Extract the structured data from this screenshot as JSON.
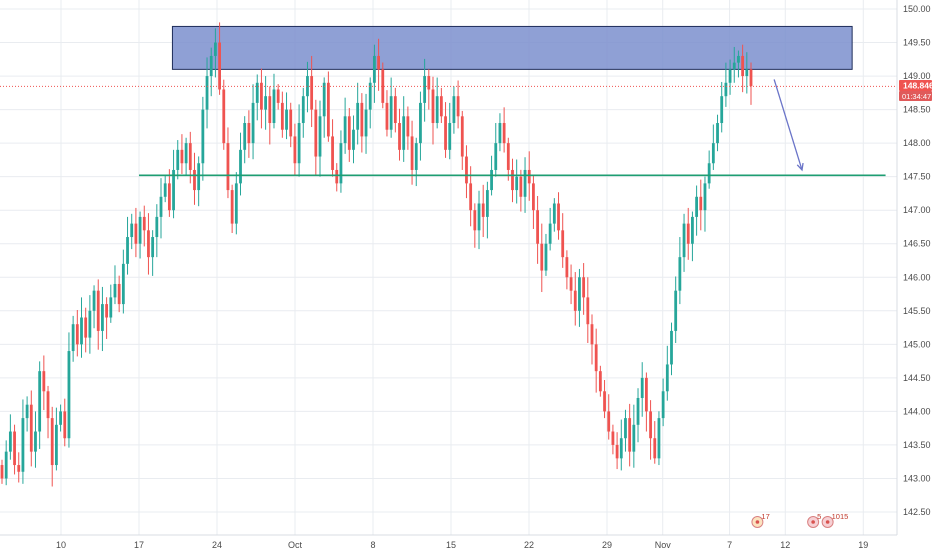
{
  "chart_data": {
    "type": "candlestick",
    "title": "",
    "ylim": [
      142.4,
      150.12
    ],
    "y_ticks": [
      "150.00",
      "149.50",
      "149.00",
      "148.50",
      "148.00",
      "147.50",
      "147.00",
      "146.50",
      "146.00",
      "145.50",
      "145.00",
      "144.50",
      "144.00",
      "143.50",
      "143.00",
      "142.50"
    ],
    "x_ticks": [
      {
        "label": "10",
        "day": 10
      },
      {
        "label": "17",
        "day": 17
      },
      {
        "label": "24",
        "day": 24
      },
      {
        "label": "Oct",
        "day": 31
      },
      {
        "label": "8",
        "day": 38
      },
      {
        "label": "15",
        "day": 45
      },
      {
        "label": "22",
        "day": 52
      },
      {
        "label": "29",
        "day": 59
      },
      {
        "label": "Nov",
        "day": 64
      },
      {
        "label": "7",
        "day": 70
      },
      {
        "label": "12",
        "day": 75
      },
      {
        "label": "19",
        "day": 82
      }
    ],
    "grid": true,
    "candle_closes": [
      143.0,
      143.4,
      143.7,
      143.2,
      143.1,
      143.9,
      144.1,
      143.4,
      143.7,
      144.6,
      144.3,
      143.9,
      143.2,
      143.8,
      144.0,
      143.6,
      144.9,
      145.3,
      145.0,
      145.4,
      145.1,
      145.5,
      145.8,
      145.2,
      145.6,
      145.4,
      145.7,
      145.9,
      145.6,
      146.2,
      146.6,
      146.8,
      146.5,
      146.9,
      146.7,
      146.3,
      146.6,
      146.9,
      147.2,
      147.4,
      147.0,
      147.6,
      147.9,
      147.7,
      148.0,
      147.6,
      147.3,
      147.7,
      148.5,
      149.0,
      149.3,
      149.5,
      148.8,
      148.0,
      147.3,
      146.8,
      147.4,
      147.9,
      148.3,
      148.0,
      148.6,
      148.9,
      148.5,
      148.7,
      148.3,
      148.8,
      148.6,
      148.2,
      148.5,
      148.1,
      147.7,
      148.3,
      148.7,
      149.0,
      148.5,
      147.8,
      148.4,
      148.9,
      148.1,
      147.6,
      147.4,
      148.0,
      148.4,
      147.9,
      148.2,
      148.6,
      148.1,
      148.5,
      148.9,
      149.3,
      149.1,
      148.6,
      148.2,
      148.7,
      148.3,
      147.9,
      148.4,
      148.1,
      147.6,
      148.0,
      148.6,
      149.0,
      148.8,
      148.3,
      148.7,
      148.4,
      147.9,
      148.3,
      148.7,
      148.4,
      147.8,
      147.4,
      147.0,
      146.7,
      147.1,
      146.9,
      147.3,
      147.6,
      148.0,
      148.3,
      148.0,
      147.6,
      147.3,
      147.5,
      147.2,
      147.6,
      147.4,
      147.0,
      146.5,
      146.1,
      146.5,
      146.8,
      147.1,
      146.7,
      146.3,
      146.0,
      145.8,
      145.5,
      146.0,
      145.7,
      145.3,
      145.0,
      144.6,
      144.3,
      144.0,
      143.7,
      143.5,
      143.3,
      143.6,
      143.9,
      143.4,
      143.8,
      144.2,
      144.5,
      144.0,
      143.6,
      143.3,
      143.9,
      144.3,
      144.7,
      145.2,
      145.8,
      146.3,
      146.8,
      146.5,
      146.9,
      147.2,
      147.0,
      147.4,
      147.7,
      148.0,
      148.3,
      148.7,
      148.9,
      149.1,
      149.2,
      149.3,
      149.0,
      149.1,
      148.85
    ],
    "last_price": "148.846",
    "countdown": "01:34:47",
    "annotations": {
      "resistance_zone": {
        "y_low": 149.1,
        "y_high": 149.74,
        "day_start": 20,
        "day_end": 81
      },
      "support_line": {
        "y": 147.52,
        "day_start": 17,
        "day_end": 84
      },
      "projection_arrow": {
        "from": {
          "day": 74,
          "y": 148.95
        },
        "to": {
          "day": 76.5,
          "y": 147.6
        }
      }
    },
    "events": [
      {
        "label": "17",
        "day": 72.5
      },
      {
        "label": "5",
        "day": 77.5
      },
      {
        "label": "1015",
        "day": 78.8
      }
    ],
    "colors": {
      "up": "#26a69a",
      "down": "#ef5350",
      "grid": "#e9ecf0",
      "zone_fill": "#7b8fce",
      "zone_border": "#1f2d5a",
      "support": "#1e9e72",
      "arrow": "#6a74c8",
      "price_line": "#ef5350",
      "price_tag": "#ef5350",
      "countdown_tag": "#e05a5a"
    }
  }
}
